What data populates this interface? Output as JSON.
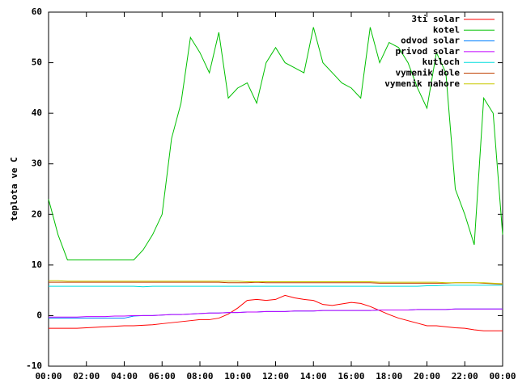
{
  "chart_data": {
    "type": "line",
    "y_label": "teplota ve C",
    "ylim": [
      -10,
      60
    ],
    "yticks": [
      -10,
      0,
      10,
      20,
      30,
      40,
      50,
      60
    ],
    "xlim": [
      0,
      24
    ],
    "xticks": [
      {
        "value": 0,
        "label": "00:00"
      },
      {
        "value": 2,
        "label": "02:00"
      },
      {
        "value": 4,
        "label": "04:00"
      },
      {
        "value": 6,
        "label": "06:00"
      },
      {
        "value": 8,
        "label": "08:00"
      },
      {
        "value": 10,
        "label": "10:00"
      },
      {
        "value": 12,
        "label": "12:00"
      },
      {
        "value": 14,
        "label": "14:00"
      },
      {
        "value": 16,
        "label": "16:00"
      },
      {
        "value": 18,
        "label": "18:00"
      },
      {
        "value": 20,
        "label": "20:00"
      },
      {
        "value": 22,
        "label": "22:00"
      },
      {
        "value": 24,
        "label": "00:00"
      }
    ],
    "legend": "top-right",
    "x": [
      0,
      0.5,
      1,
      1.5,
      2,
      2.5,
      3,
      3.5,
      4,
      4.5,
      5,
      5.5,
      6,
      6.5,
      7,
      7.5,
      8,
      8.5,
      9,
      9.5,
      10,
      10.5,
      11,
      11.5,
      12,
      12.5,
      13,
      13.5,
      14,
      14.5,
      15,
      15.5,
      16,
      16.5,
      17,
      17.5,
      18,
      18.5,
      19,
      19.5,
      20,
      20.5,
      21,
      21.5,
      22,
      22.5,
      23,
      23.5,
      24
    ],
    "series": [
      {
        "name": "3ti solar",
        "color": "#ff0000",
        "values": [
          -2.5,
          -2.5,
          -2.5,
          -2.5,
          -2.4,
          -2.3,
          -2.2,
          -2.1,
          -2,
          -2,
          -1.9,
          -1.8,
          -1.6,
          -1.4,
          -1.2,
          -1,
          -0.8,
          -0.8,
          -0.5,
          0.3,
          1.5,
          3,
          3.2,
          3,
          3.2,
          4,
          3.5,
          3.2,
          3,
          2.2,
          2,
          2.3,
          2.6,
          2.4,
          1.8,
          1,
          0.2,
          -0.5,
          -1,
          -1.5,
          -2,
          -2,
          -2.2,
          -2.4,
          -2.5,
          -2.8,
          -3,
          -3,
          -3
        ]
      },
      {
        "name": "kotel",
        "color": "#00c000",
        "values": [
          23,
          16,
          11,
          11,
          11,
          11,
          11,
          11,
          11,
          11,
          13,
          16,
          20,
          35,
          42,
          55,
          52,
          48,
          56,
          43,
          45,
          46,
          42,
          50,
          53,
          50,
          49,
          48,
          57,
          50,
          48,
          46,
          45,
          43,
          57,
          50,
          54,
          53,
          50,
          45,
          41,
          52,
          48,
          25,
          20,
          14,
          43,
          40,
          16
        ]
      },
      {
        "name": "odvod solar",
        "color": "#0080ff",
        "values": [
          -0.5,
          -0.5,
          -0.5,
          -0.5,
          -0.5,
          -0.5,
          -0.5,
          -0.5,
          -0.5,
          -0.1,
          0,
          0,
          0.1,
          0.2,
          0.2,
          0.3,
          0.4,
          0.5,
          0.5,
          0.6,
          0.6,
          0.7,
          0.7,
          0.8,
          0.8,
          0.8,
          0.9,
          0.9,
          0.9,
          1,
          1,
          1,
          1,
          1,
          1,
          1.1,
          1.1,
          1.1,
          1.1,
          1.2,
          1.2,
          1.2,
          1.2,
          1.3,
          1.3,
          1.3,
          1.3,
          1.3,
          1.3
        ]
      },
      {
        "name": "privod solar",
        "color": "#c000ff",
        "values": [
          -0.3,
          -0.3,
          -0.3,
          -0.3,
          -0.2,
          -0.2,
          -0.2,
          -0.1,
          -0.1,
          0,
          0,
          0,
          0.1,
          0.2,
          0.2,
          0.3,
          0.4,
          0.5,
          0.5,
          0.6,
          0.6,
          0.7,
          0.7,
          0.8,
          0.8,
          0.8,
          0.9,
          0.9,
          0.9,
          1,
          1,
          1,
          1,
          1,
          1,
          1.1,
          1.1,
          1.1,
          1.1,
          1.2,
          1.2,
          1.2,
          1.2,
          1.3,
          1.3,
          1.3,
          1.3,
          1.3,
          1.3
        ]
      },
      {
        "name": "kutloch",
        "color": "#00dddd",
        "values": [
          5.8,
          5.8,
          5.8,
          5.8,
          5.8,
          5.8,
          5.8,
          5.8,
          5.8,
          5.8,
          5.7,
          5.8,
          5.8,
          5.8,
          5.8,
          5.8,
          5.8,
          5.8,
          5.8,
          5.8,
          5.8,
          5.8,
          5.8,
          5.8,
          5.8,
          5.8,
          5.8,
          5.8,
          5.8,
          5.8,
          5.8,
          5.8,
          5.8,
          5.8,
          5.8,
          5.8,
          5.8,
          5.8,
          5.8,
          5.8,
          5.9,
          5.9,
          6,
          6,
          6,
          6,
          6,
          6,
          6
        ]
      },
      {
        "name": "vymenik dole",
        "color": "#c04000",
        "values": [
          6.6,
          6.6,
          6.6,
          6.6,
          6.6,
          6.6,
          6.6,
          6.6,
          6.6,
          6.6,
          6.6,
          6.6,
          6.6,
          6.6,
          6.6,
          6.6,
          6.6,
          6.6,
          6.6,
          6.5,
          6.5,
          6.5,
          6.6,
          6.5,
          6.5,
          6.5,
          6.5,
          6.5,
          6.5,
          6.5,
          6.5,
          6.5,
          6.5,
          6.5,
          6.5,
          6.4,
          6.4,
          6.4,
          6.4,
          6.4,
          6.4,
          6.4,
          6.4,
          6.5,
          6.5,
          6.5,
          6.4,
          6.3,
          6.2
        ]
      },
      {
        "name": "vymenik nahore",
        "color": "#c8c800",
        "values": [
          6.9,
          6.9,
          6.8,
          6.8,
          6.8,
          6.8,
          6.8,
          6.8,
          6.8,
          6.8,
          6.8,
          6.8,
          6.8,
          6.8,
          6.8,
          6.8,
          6.8,
          6.8,
          6.8,
          6.8,
          6.8,
          6.7,
          6.7,
          6.7,
          6.7,
          6.7,
          6.7,
          6.7,
          6.7,
          6.7,
          6.7,
          6.7,
          6.7,
          6.7,
          6.7,
          6.6,
          6.6,
          6.6,
          6.6,
          6.6,
          6.6,
          6.6,
          6.5,
          6.5,
          6.5,
          6.5,
          6.5,
          6.4,
          6.3
        ]
      }
    ]
  }
}
